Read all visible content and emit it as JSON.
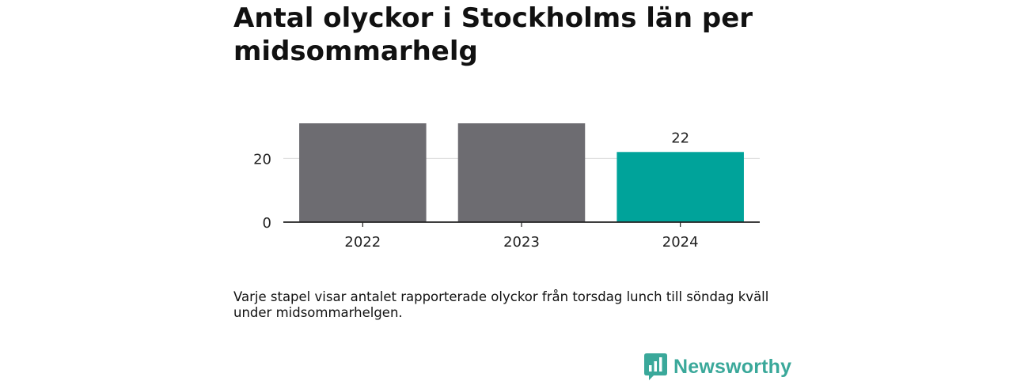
{
  "title": "Antal olyckor i Stockholms län per midsommarhelg",
  "caption": "Varje stapel visar antalet rapporterade olyckor från torsdag lunch till söndag kväll under midsommarhelgen.",
  "brand": {
    "name": "Newsworthy",
    "color": "#3aa89a",
    "logo_icon": "bar-chart-speech-bubble-icon"
  },
  "chart_data": {
    "type": "bar",
    "categories": [
      "2022",
      "2023",
      "2024"
    ],
    "values": [
      31,
      31,
      22
    ],
    "value_labels": [
      "",
      "",
      "22"
    ],
    "ylim": [
      0,
      31
    ],
    "yticks": [
      0,
      20
    ],
    "xlabel": "",
    "ylabel": "",
    "grid": true,
    "colors": [
      "#6d6c71",
      "#6d6c71",
      "#00a39a"
    ]
  }
}
